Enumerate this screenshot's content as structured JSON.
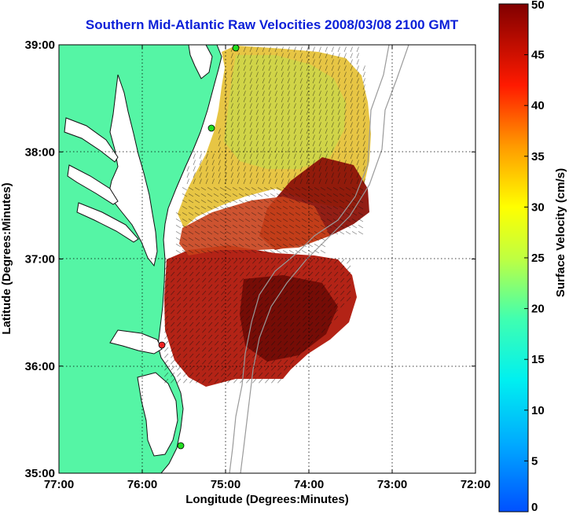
{
  "map": {
    "title": "Southern Mid-Atlantic Raw Velocities 2008/03/08 2100 GMT",
    "xlabel": "Longitude (Degrees:Minutes)",
    "ylabel": "Latitude (Degrees:Minutes)",
    "x_ticks": [
      "77:00",
      "76:00",
      "75:00",
      "74:00",
      "73:00",
      "72:00"
    ],
    "y_ticks": [
      "39:00",
      "38:00",
      "37:00",
      "36:00",
      "35:00"
    ],
    "lon_range": [
      -77,
      -72
    ],
    "lat_range": [
      35,
      39
    ],
    "grid": "dotted"
  },
  "colorbar": {
    "label": "Surface Velocity (cm/s)",
    "ticks": [
      "50",
      "45",
      "40",
      "35",
      "30",
      "25",
      "20",
      "15",
      "10",
      "5",
      "0"
    ],
    "range": [
      0,
      50
    ]
  },
  "colors": {
    "land": "#55f5a5",
    "coastline": "#111111",
    "title": "#0b1fd8",
    "bathymetry": "#9a9a9a",
    "station_green": "#22dd22",
    "station_red": "#ee2222"
  }
}
